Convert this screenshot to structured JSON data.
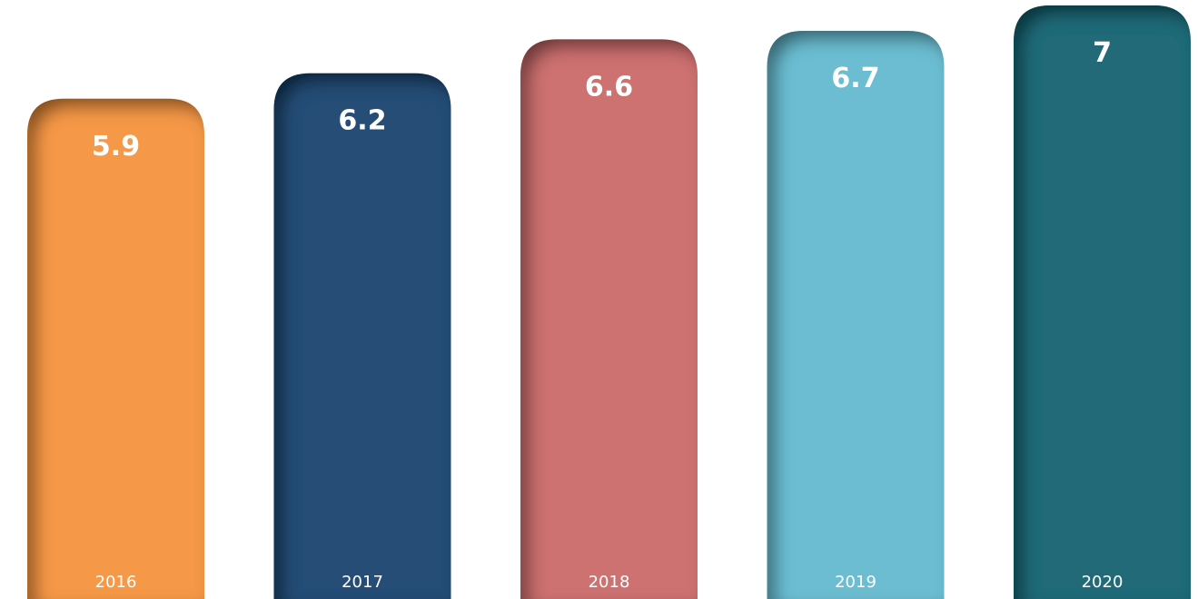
{
  "chart_data": {
    "type": "bar",
    "categories": [
      "2016",
      "2017",
      "2018",
      "2019",
      "2020"
    ],
    "values": [
      5.9,
      6.2,
      6.6,
      6.7,
      7
    ],
    "colors": [
      "#f59847",
      "#284d76",
      "#cd7171",
      "#6cbdd1",
      "#206a78"
    ]
  }
}
